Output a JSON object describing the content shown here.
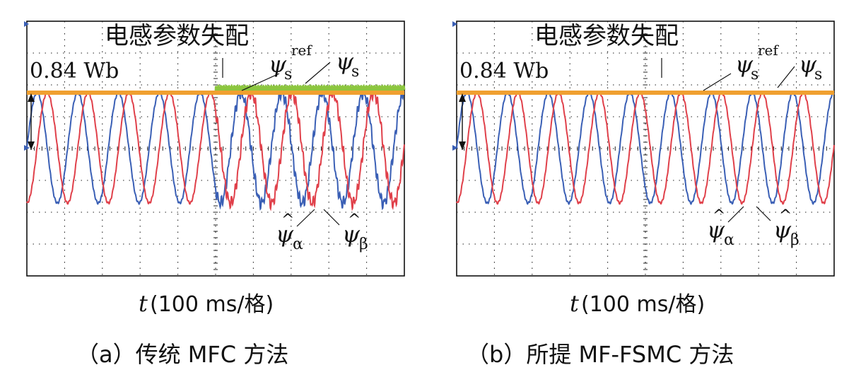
{
  "panels": [
    {
      "id": "a",
      "event_label": "电感参数失配",
      "flux_label": "0.84 Wb",
      "xlabel_var": "t",
      "xlabel_unit": "(100 ms/格)",
      "caption": "（a）传统 MFC 方法",
      "labels": {
        "psi_s_ref": "ψ",
        "psi_s_ref_sub": "s",
        "psi_s_ref_sup": "ref",
        "psi_s": "ψ",
        "psi_s_sub": "s",
        "psi_alpha": "ψ",
        "psi_alpha_sub": "α",
        "psi_beta": "ψ",
        "psi_beta_sub": "β"
      }
    },
    {
      "id": "b",
      "event_label": "电感参数失配",
      "flux_label": "0.84 Wb",
      "xlabel_var": "t",
      "xlabel_unit": "(100 ms/格)",
      "caption": "（b）所提 MF-FSMC 方法",
      "labels": {
        "psi_s_ref": "ψ",
        "psi_s_ref_sub": "s",
        "psi_s_ref_sup": "ref",
        "psi_s": "ψ",
        "psi_s_sub": "s",
        "psi_alpha": "ψ",
        "psi_alpha_sub": "α",
        "psi_beta": "ψ",
        "psi_beta_sub": "β"
      }
    }
  ],
  "chart_data": [
    {
      "type": "line",
      "panel": "a",
      "x_unit": "ms",
      "xlim": [
        0,
        1000
      ],
      "ylim": [
        -1.4,
        1.4
      ],
      "y_unit": "Wb",
      "grid": true,
      "event_time": 500,
      "series": [
        {
          "name": "ψs_ref",
          "kind": "constant",
          "value": 0.84,
          "color": "#f0a030"
        },
        {
          "name": "ψs",
          "kind": "constant",
          "value": 0.84,
          "ripple_after_event": 0.1,
          "color": "#8cc63f"
        },
        {
          "name": "ψα",
          "kind": "sine",
          "amplitude": 0.84,
          "period": 108,
          "phase_deg": 0,
          "color": "#3a5fb5",
          "distortion_after_event": true
        },
        {
          "name": "ψβ",
          "kind": "sine",
          "amplitude": 0.84,
          "period": 108,
          "phase_deg": -90,
          "color": "#e0404a",
          "distortion_after_event": true
        }
      ]
    },
    {
      "type": "line",
      "panel": "b",
      "x_unit": "ms",
      "xlim": [
        0,
        1000
      ],
      "ylim": [
        -1.4,
        1.4
      ],
      "y_unit": "Wb",
      "grid": true,
      "event_time": 500,
      "series": [
        {
          "name": "ψs_ref",
          "kind": "constant",
          "value": 0.84,
          "color": "#f0a030"
        },
        {
          "name": "ψs",
          "kind": "constant",
          "value": 0.84,
          "ripple_after_event": 0.0,
          "color": "#8cc63f"
        },
        {
          "name": "ψα",
          "kind": "sine",
          "amplitude": 0.84,
          "period": 108,
          "phase_deg": 0,
          "color": "#3a5fb5",
          "distortion_after_event": false
        },
        {
          "name": "ψβ",
          "kind": "sine",
          "amplitude": 0.84,
          "period": 108,
          "phase_deg": -90,
          "color": "#e0404a",
          "distortion_after_event": false
        }
      ]
    }
  ]
}
